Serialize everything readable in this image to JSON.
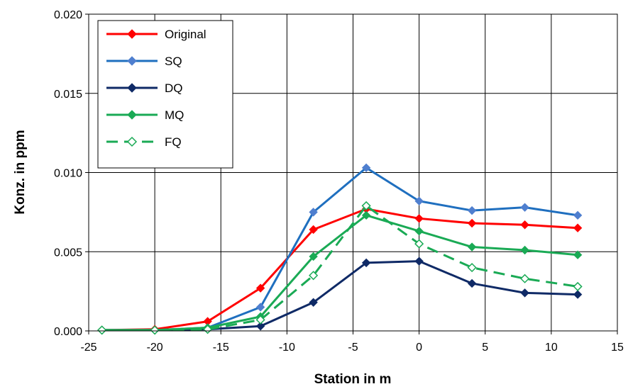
{
  "chart_data": {
    "type": "line",
    "xlabel": "Station in m",
    "ylabel": "Konz. in ppm",
    "xlim": [
      -25,
      15
    ],
    "ylim": [
      0,
      0.02
    ],
    "x_ticks": [
      "-25",
      "-20",
      "-15",
      "-10",
      "-5",
      "0",
      "5",
      "10",
      "15"
    ],
    "y_ticks": [
      "0.000",
      "0.005",
      "0.010",
      "0.015",
      "0.020"
    ],
    "grid": true,
    "legend_position": "top-left",
    "x": [
      -24,
      -20,
      -16,
      -12,
      -8,
      -4,
      0,
      4,
      8,
      12
    ],
    "series": [
      {
        "name": "Original",
        "color": "#ff0000",
        "marker": "filled-diamond",
        "dash": "solid",
        "values": [
          5e-05,
          0.0001,
          0.0006,
          0.0027,
          0.0064,
          0.0077,
          0.0071,
          0.0068,
          0.0067,
          0.0065
        ]
      },
      {
        "name": "SQ",
        "color": "#1f6fbf",
        "markerColor": "#4f7fcf",
        "marker": "filled-diamond",
        "dash": "solid",
        "values": [
          5e-05,
          5e-05,
          0.0002,
          0.0015,
          0.0075,
          0.0103,
          0.0082,
          0.0076,
          0.0078,
          0.0073
        ]
      },
      {
        "name": "DQ",
        "color": "#0f2a66",
        "marker": "filled-diamond",
        "dash": "solid",
        "values": [
          5e-05,
          5e-05,
          0.0001,
          0.0003,
          0.0018,
          0.0043,
          0.0044,
          0.003,
          0.0024,
          0.0023
        ]
      },
      {
        "name": "MQ",
        "color": "#1aaa55",
        "marker": "filled-diamond",
        "dash": "solid",
        "values": [
          5e-05,
          5e-05,
          0.0002,
          0.0009,
          0.0047,
          0.0073,
          0.0063,
          0.0053,
          0.0051,
          0.0048
        ]
      },
      {
        "name": "FQ",
        "color": "#1aaa55",
        "marker": "open-diamond",
        "dash": "dashed",
        "values": [
          5e-05,
          5e-05,
          0.0001,
          0.0007,
          0.0035,
          0.0079,
          0.0055,
          0.004,
          0.0033,
          0.0028
        ]
      }
    ]
  }
}
